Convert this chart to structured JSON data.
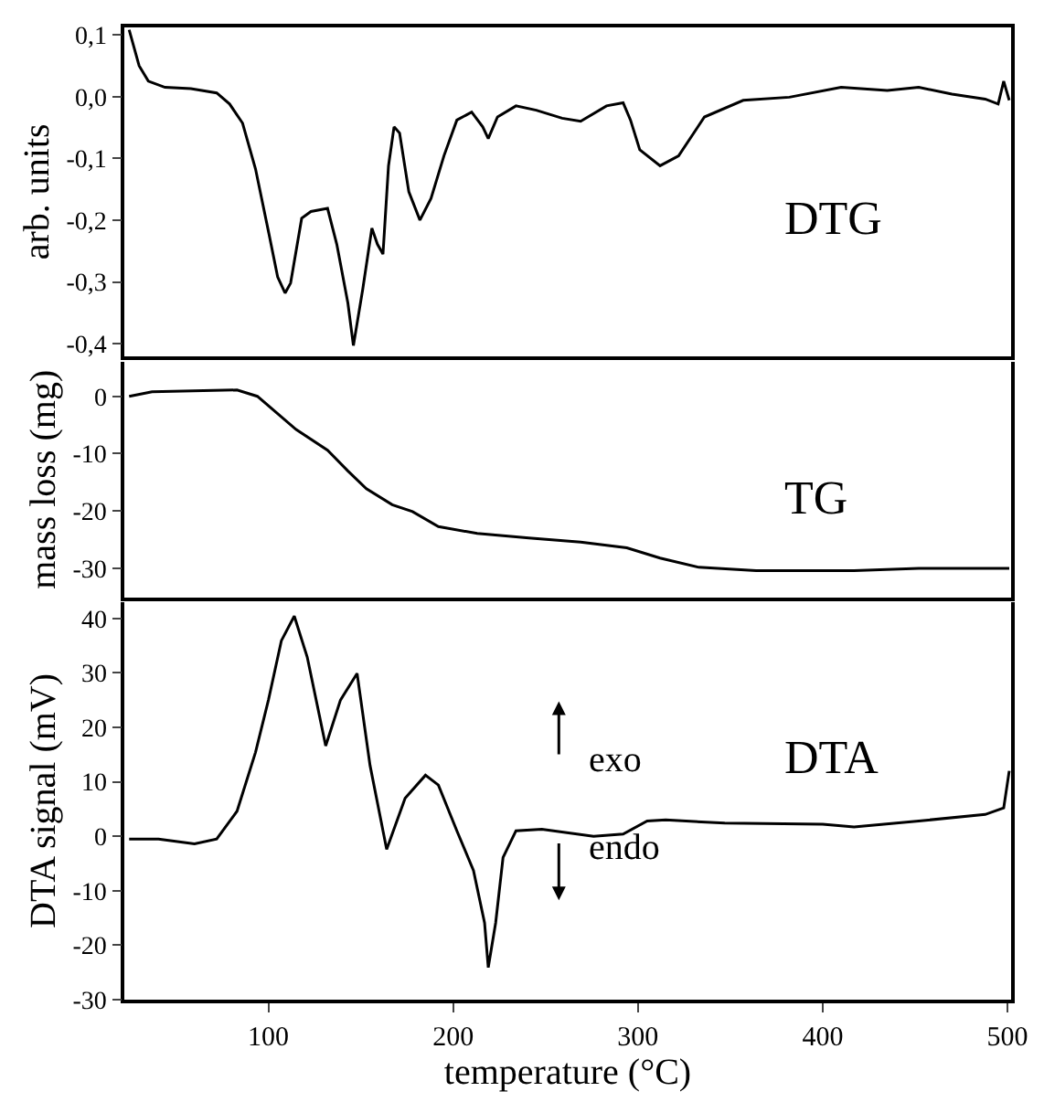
{
  "chart_data": [
    {
      "type": "line",
      "ylabel": "arb. units",
      "xlim": [
        22,
        502
      ],
      "ylim": [
        -0.42,
        0.112
      ],
      "tick_labels": "y",
      "marker": "none",
      "line_style": "solid",
      "yticks": [
        {
          "value": 0.1,
          "label": "0,1"
        },
        {
          "value": 0.0,
          "label": "0,0"
        },
        {
          "value": -0.1,
          "label": "-0,1"
        },
        {
          "value": -0.2,
          "label": "-0,2"
        },
        {
          "value": -0.3,
          "label": "-0,3"
        },
        {
          "value": -0.4,
          "label": "-0,4"
        }
      ],
      "annotations": [
        "DTG"
      ],
      "series": [
        {
          "color": "#000000",
          "x": [
            24.6,
            30,
            35,
            44,
            58,
            72,
            79,
            86,
            93,
            100,
            105,
            109,
            112,
            118,
            123,
            132,
            137,
            143,
            146,
            151,
            156,
            159,
            162,
            165,
            168,
            171,
            176,
            182,
            188,
            195,
            202,
            210,
            216,
            219,
            224,
            234,
            245,
            259,
            269,
            283,
            292,
            296,
            301,
            312,
            322,
            336,
            357,
            382,
            410,
            435,
            452,
            470,
            488,
            495,
            498,
            501
          ],
          "values": [
            0.108,
            0.05,
            0.025,
            0.015,
            0.013,
            0.006,
            -0.012,
            -0.043,
            -0.117,
            -0.218,
            -0.292,
            -0.318,
            -0.302,
            -0.197,
            -0.186,
            -0.181,
            -0.239,
            -0.334,
            -0.403,
            -0.313,
            -0.213,
            -0.239,
            -0.255,
            -0.112,
            -0.049,
            -0.059,
            -0.154,
            -0.2,
            -0.165,
            -0.096,
            -0.038,
            -0.025,
            -0.049,
            -0.068,
            -0.033,
            -0.015,
            -0.022,
            -0.035,
            -0.04,
            -0.015,
            -0.01,
            -0.038,
            -0.086,
            -0.112,
            -0.096,
            -0.033,
            -0.006,
            -0.001,
            0.015,
            0.01,
            0.015,
            0.004,
            -0.004,
            -0.012,
            0.025,
            -0.006
          ]
        }
      ]
    },
    {
      "type": "line",
      "ylabel": "mass loss (mg)",
      "xlim": [
        22,
        502
      ],
      "ylim": [
        -35,
        6
      ],
      "yticks": [
        0,
        -10,
        -20,
        -30
      ],
      "tick_labels": "y",
      "marker": "none",
      "line_style": "solid",
      "annotations": [
        "TG"
      ],
      "series": [
        {
          "color": "#000000",
          "x": [
            24.6,
            37,
            83,
            94,
            115,
            132,
            143,
            153,
            167,
            178,
            192,
            213,
            241,
            269,
            294,
            312,
            333,
            364,
            417,
            452,
            501
          ],
          "values": [
            0,
            0.8,
            1.1,
            0,
            -5.8,
            -9.4,
            -13,
            -16.1,
            -18.9,
            -20.1,
            -22.7,
            -23.9,
            -24.7,
            -25.4,
            -26.4,
            -28.2,
            -29.8,
            -30.4,
            -30.4,
            -30,
            -30
          ]
        }
      ]
    },
    {
      "type": "line",
      "xlabel": "temperature (°C)",
      "ylabel": "DTA signal (mV)",
      "xlim": [
        22,
        502
      ],
      "xticks": [
        100,
        200,
        300,
        400,
        500
      ],
      "ylim": [
        -30,
        43
      ],
      "yticks": [
        40,
        30,
        20,
        10,
        0,
        -10,
        -20,
        -30
      ],
      "marker": "none",
      "line_style": "solid",
      "annotations": [
        "exo",
        "endo",
        "DTA"
      ],
      "series": [
        {
          "color": "#000000",
          "x": [
            24.6,
            40.5,
            60,
            72,
            83,
            93,
            100,
            107,
            114,
            121,
            131,
            139,
            148,
            155,
            164,
            174,
            185,
            192,
            202,
            211,
            217,
            219,
            223,
            227,
            234,
            248,
            276,
            292,
            305,
            315,
            347,
            400,
            417,
            452,
            488,
            498,
            501
          ],
          "values": [
            -0.5,
            -0.5,
            -1.4,
            -0.5,
            4.6,
            15.4,
            25,
            35.9,
            40.4,
            32.9,
            16.6,
            25,
            29.9,
            13,
            -2.4,
            7,
            11.2,
            9.4,
            1,
            -6.3,
            -15.9,
            -24.1,
            -15.9,
            -3.9,
            1,
            1.3,
            0,
            0.4,
            2.8,
            3,
            2.4,
            2.2,
            1.7,
            2.8,
            4,
            5.2,
            12
          ]
        }
      ]
    }
  ]
}
